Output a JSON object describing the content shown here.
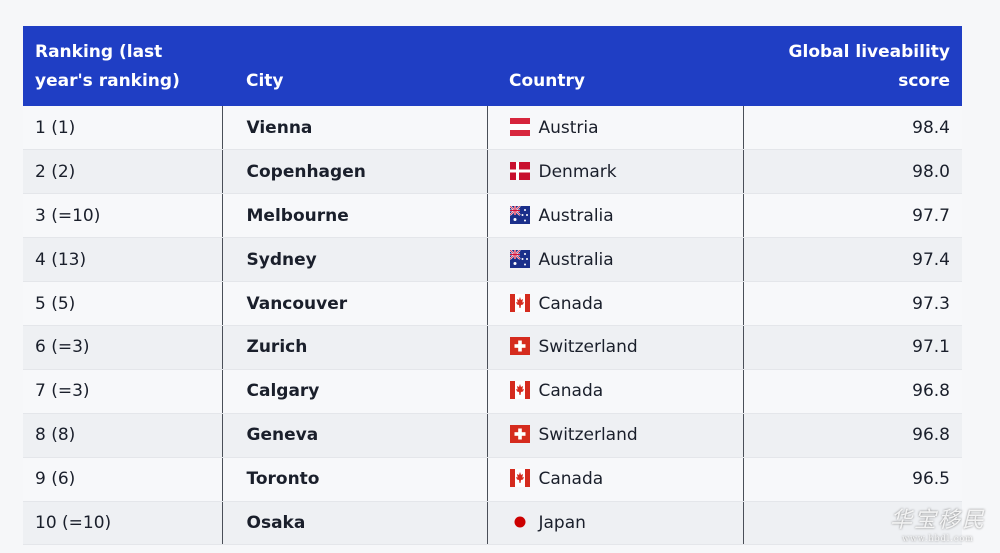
{
  "header": {
    "rank_line1": "Ranking (last",
    "rank_line2": "year's ranking)",
    "city": "City",
    "country": "Country",
    "score_line1": "Global liveability",
    "score_line2": "score"
  },
  "rows": [
    {
      "rank": "1 (1)",
      "city": "Vienna",
      "country": "Austria",
      "flag": "austria-flag-icon",
      "score": "98.4"
    },
    {
      "rank": "2 (2)",
      "city": "Copenhagen",
      "country": "Denmark",
      "flag": "denmark-flag-icon",
      "score": "98.0"
    },
    {
      "rank": "3 (=10)",
      "city": "Melbourne",
      "country": "Australia",
      "flag": "australia-flag-icon",
      "score": "97.7"
    },
    {
      "rank": "4 (13)",
      "city": "Sydney",
      "country": "Australia",
      "flag": "australia-flag-icon",
      "score": "97.4"
    },
    {
      "rank": "5 (5)",
      "city": "Vancouver",
      "country": "Canada",
      "flag": "canada-flag-icon",
      "score": "97.3"
    },
    {
      "rank": "6 (=3)",
      "city": "Zurich",
      "country": "Switzerland",
      "flag": "switzerland-flag-icon",
      "score": "97.1"
    },
    {
      "rank": "7 (=3)",
      "city": "Calgary",
      "country": "Canada",
      "flag": "canada-flag-icon",
      "score": "96.8"
    },
    {
      "rank": "8 (8)",
      "city": "Geneva",
      "country": "Switzerland",
      "flag": "switzerland-flag-icon",
      "score": "96.8"
    },
    {
      "rank": "9 (6)",
      "city": "Toronto",
      "country": "Canada",
      "flag": "canada-flag-icon",
      "score": "96.5"
    },
    {
      "rank": "10 (=10)",
      "city": "Osaka",
      "country": "Japan",
      "flag": "japan-flag-icon",
      "score": ""
    }
  ],
  "colors": {
    "header_bg": "#1f3ec4",
    "header_text": "#ffffff",
    "row_text": "#1a1f2b"
  },
  "watermark": {
    "main": "华宝移民",
    "url": "www.hbdl.com"
  }
}
